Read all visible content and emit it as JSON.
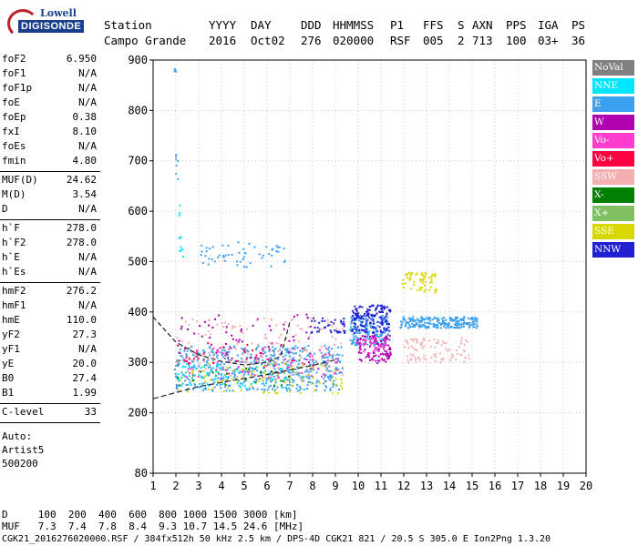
{
  "logo": {
    "lowell": "Lowell",
    "digisonde": "DIGISONDE"
  },
  "header": {
    "row1": [
      {
        "t": "Station",
        "x": 114
      },
      {
        "t": "YYYY",
        "x": 229
      },
      {
        "t": "DAY",
        "x": 275
      },
      {
        "t": "DDD",
        "x": 330
      },
      {
        "t": "HHMMSS",
        "x": 365
      },
      {
        "t": "P1",
        "x": 428
      },
      {
        "t": "FFS",
        "x": 464
      },
      {
        "t": "S",
        "x": 502
      },
      {
        "t": "AXN",
        "x": 518
      },
      {
        "t": "PPS",
        "x": 555
      },
      {
        "t": "IGA",
        "x": 590
      },
      {
        "t": "PS",
        "x": 627
      }
    ],
    "row2": [
      {
        "t": "Campo Grande",
        "x": 114
      },
      {
        "t": "2016",
        "x": 229
      },
      {
        "t": "Oct02",
        "x": 275
      },
      {
        "t": "276",
        "x": 330
      },
      {
        "t": "020000",
        "x": 365
      },
      {
        "t": "RSF",
        "x": 428
      },
      {
        "t": "005",
        "x": 464
      },
      {
        "t": "2",
        "x": 502
      },
      {
        "t": "713",
        "x": 518
      },
      {
        "t": "100",
        "x": 555
      },
      {
        "t": "03+",
        "x": 590
      },
      {
        "t": "36",
        "x": 627
      }
    ]
  },
  "params": [
    {
      "name": "foF2",
      "value": "6.950"
    },
    {
      "name": "foF1",
      "value": "N/A"
    },
    {
      "name": "foF1p",
      "value": "N/A"
    },
    {
      "name": "foE",
      "value": "N/A"
    },
    {
      "name": "foEp",
      "value": "0.38"
    },
    {
      "name": "fxI",
      "value": "8.10"
    },
    {
      "name": "foEs",
      "value": "N/A"
    },
    {
      "name": "fmin",
      "value": "4.80"
    },
    {
      "sep": true
    },
    {
      "name": "MUF(D)",
      "value": "24.62"
    },
    {
      "name": "M(D)",
      "value": "3.54"
    },
    {
      "name": "D",
      "value": "N/A"
    },
    {
      "sep": true
    },
    {
      "name": "h`F",
      "value": "278.0"
    },
    {
      "name": "h`F2",
      "value": "278.0"
    },
    {
      "name": "h`E",
      "value": "N/A"
    },
    {
      "name": "h`Es",
      "value": "N/A"
    },
    {
      "sep": true
    },
    {
      "name": "hmF2",
      "value": "276.2"
    },
    {
      "name": "hmF1",
      "value": "N/A"
    },
    {
      "name": "hmE",
      "value": "110.0"
    },
    {
      "name": "yF2",
      "value": "27.3"
    },
    {
      "name": "yF1",
      "value": "N/A"
    },
    {
      "name": "yE",
      "value": "20.0"
    },
    {
      "name": "B0",
      "value": "27.4"
    },
    {
      "name": "B1",
      "value": "1.99"
    },
    {
      "sep": true
    },
    {
      "name": "C-level",
      "value": "33"
    },
    {
      "sep": true
    }
  ],
  "autoscale": {
    "line1": "Auto:",
    "line2": "Artist5",
    "line3": "500200"
  },
  "legend": [
    {
      "label": "NoVal",
      "color": "#808080"
    },
    {
      "label": "NNE",
      "color": "#00e6ff"
    },
    {
      "label": "E",
      "color": "#3aa0f0"
    },
    {
      "label": "W",
      "color": "#b000b0"
    },
    {
      "label": "Vo-",
      "color": "#ff3cd0"
    },
    {
      "label": "Vo+",
      "color": "#ff0040"
    },
    {
      "label": "SSW",
      "color": "#f4b0b0"
    },
    {
      "label": "X-",
      "color": "#008000"
    },
    {
      "label": "X+",
      "color": "#80c060"
    },
    {
      "label": "SSE",
      "color": "#d8d800"
    },
    {
      "label": "NNW",
      "color": "#2020d0"
    }
  ],
  "bottom": {
    "d_row": "D     100  200  400  600  800 1000 1500 3000 [km]",
    "muf_row": "MUF   7.3  7.4  7.8  8.4  9.3 10.7 14.5 24.6 [MHz]",
    "footer": "CGK21_2016276020000.RSF / 384fx512h 50 kHz 2.5 km / DPS-4D CGK21 821 / 20.5 S 305.0 E Ion2Png 1.3.20"
  },
  "chart_data": {
    "type": "scatter",
    "title": "",
    "xlabel": "",
    "ylabel": "",
    "xlim": [
      1,
      20
    ],
    "ylim": [
      80,
      900
    ],
    "x_ticks": [
      1,
      2,
      3,
      4,
      5,
      6,
      7,
      8,
      9,
      10,
      11,
      12,
      13,
      14,
      15,
      16,
      17,
      18,
      19,
      20
    ],
    "y_ticks": [
      80,
      200,
      300,
      400,
      500,
      600,
      700,
      800,
      900
    ],
    "grid": "dotted",
    "legend_position": "right",
    "series": [
      {
        "name": "E",
        "color": "#3aa0f0",
        "clusters": [
          {
            "x": [
              1.9,
              9.3
            ],
            "y": [
              245,
              335
            ],
            "n": 520
          },
          {
            "x": [
              9.6,
              11.3
            ],
            "y": [
              335,
              395
            ],
            "n": 160
          },
          {
            "x": [
              11.8,
              15.2
            ],
            "y": [
              370,
              392
            ],
            "n": 230
          },
          {
            "x": [
              3.0,
              6.8
            ],
            "y": [
              490,
              540
            ],
            "n": 55
          },
          {
            "x": [
              1.95,
              2.05
            ],
            "y": [
              660,
              720
            ],
            "n": 8
          },
          {
            "x": [
              1.9,
              2.0
            ],
            "y": [
              870,
              890
            ],
            "n": 4
          }
        ]
      },
      {
        "name": "NNW",
        "color": "#2020d0",
        "clusters": [
          {
            "x": [
              9.7,
              11.4
            ],
            "y": [
              360,
              415
            ],
            "n": 150
          },
          {
            "x": [
              7.8,
              9.4
            ],
            "y": [
              360,
              390
            ],
            "n": 40
          }
        ]
      },
      {
        "name": "W",
        "color": "#b000b0",
        "clusters": [
          {
            "x": [
              9.9,
              11.4
            ],
            "y": [
              300,
              355
            ],
            "n": 110
          },
          {
            "x": [
              2.0,
              8.0
            ],
            "y": [
              290,
              400
            ],
            "n": 70
          }
        ]
      },
      {
        "name": "SSE",
        "color": "#d8d800",
        "clusters": [
          {
            "x": [
              11.9,
              13.4
            ],
            "y": [
              440,
              480
            ],
            "n": 60
          },
          {
            "x": [
              2.0,
              9.4
            ],
            "y": [
              240,
              300
            ],
            "n": 90
          }
        ]
      },
      {
        "name": "SSW",
        "color": "#f4b0b0",
        "clusters": [
          {
            "x": [
              12.0,
              14.9
            ],
            "y": [
              300,
              350
            ],
            "n": 90
          },
          {
            "x": [
              2.0,
              9.3
            ],
            "y": [
              270,
              390
            ],
            "n": 140
          }
        ]
      },
      {
        "name": "Vo-",
        "color": "#ff3cd0",
        "clusters": [
          {
            "x": [
              2.0,
              9.2
            ],
            "y": [
              270,
              330
            ],
            "n": 80
          },
          {
            "x": [
              10.0,
              11.3
            ],
            "y": [
              315,
              350
            ],
            "n": 30
          }
        ]
      },
      {
        "name": "NNE",
        "color": "#00e6ff",
        "clusters": [
          {
            "x": [
              2.0,
              7.0
            ],
            "y": [
              250,
              300
            ],
            "n": 70
          },
          {
            "x": [
              2.1,
              2.3
            ],
            "y": [
              500,
              620
            ],
            "n": 12
          }
        ]
      },
      {
        "name": "Vo+",
        "color": "#ff0040",
        "clusters": [
          {
            "x": [
              2.0,
              7.2
            ],
            "y": [
              300,
              340
            ],
            "n": 25
          }
        ]
      },
      {
        "name": "X-",
        "color": "#008000",
        "clusters": [
          {
            "x": [
              2.0,
              7.0
            ],
            "y": [
              255,
              290
            ],
            "n": 20
          }
        ]
      },
      {
        "name": "X+",
        "color": "#80c060",
        "clusters": [
          {
            "x": [
              4.0,
              9.0
            ],
            "y": [
              260,
              300
            ],
            "n": 20
          }
        ]
      },
      {
        "name": "NoVal",
        "color": "#808080",
        "clusters": [
          {
            "x": [
              2.0,
              9.0
            ],
            "y": [
              260,
              330
            ],
            "n": 25
          }
        ]
      }
    ],
    "profile_curve": {
      "x": [
        1.0,
        2.0,
        3.0,
        4.0,
        5.0,
        6.0,
        6.6,
        7.0
      ],
      "y": [
        390,
        340,
        315,
        302,
        295,
        300,
        312,
        380
      ]
    },
    "trace_curve": {
      "x": [
        1.0,
        2.0,
        3.0,
        4.0,
        5.0,
        6.0,
        7.0,
        8.0,
        9.0
      ],
      "y": [
        228,
        240,
        252,
        260,
        268,
        276,
        285,
        294,
        305
      ]
    }
  }
}
